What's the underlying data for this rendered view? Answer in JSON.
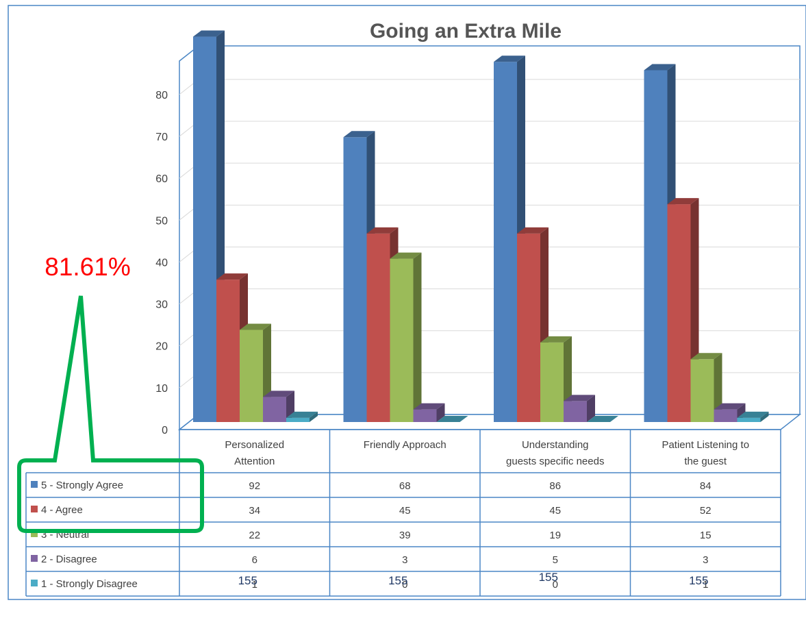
{
  "chart_data": {
    "type": "bar",
    "title": "Going an Extra Mile",
    "categories": [
      [
        "Personalized",
        "Attention"
      ],
      [
        "Friendly Approach"
      ],
      [
        "Understanding",
        "guests specific needs"
      ],
      [
        "Patient Listening to",
        "the guest"
      ]
    ],
    "series": [
      {
        "name": "5 - Strongly Agree",
        "values": [
          92,
          68,
          86,
          84
        ],
        "color": "#4f81bd"
      },
      {
        "name": "4 - Agree",
        "values": [
          34,
          45,
          45,
          52
        ],
        "color": "#c0504d"
      },
      {
        "name": "3 - Neutral",
        "values": [
          22,
          39,
          19,
          15
        ],
        "color": "#9bbb59"
      },
      {
        "name": "2 - Disagree",
        "values": [
          6,
          3,
          5,
          3
        ],
        "color": "#8064a2"
      },
      {
        "name": "1 - Strongly Disagree",
        "values": [
          1,
          0,
          0,
          1
        ],
        "color": "#4bacc6"
      }
    ],
    "yticks": [
      0,
      10,
      20,
      30,
      40,
      50,
      60,
      70,
      80
    ],
    "ylim": [
      0,
      88
    ],
    "data_table": true,
    "grid": true
  },
  "annotation": {
    "text": "81.61%",
    "color": "#ff0000",
    "callout_color": "#00b050"
  },
  "totals": [
    "155",
    "155",
    "155",
    "155"
  ]
}
